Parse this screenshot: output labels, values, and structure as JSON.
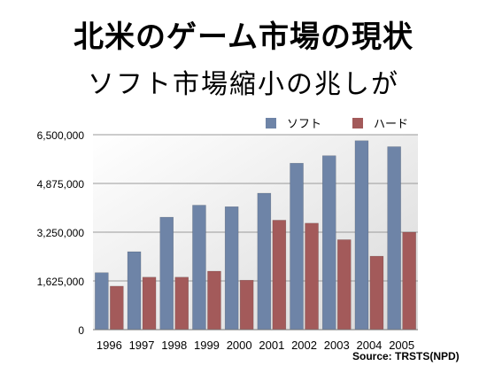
{
  "page": {
    "title": "北米のゲーム市場の現状",
    "subtitle": "ソフト市場縮小の兆しが",
    "source": "Source: TRSTS(NPD)"
  },
  "chart_data": {
    "type": "bar",
    "categories": [
      "1996",
      "1997",
      "1998",
      "1999",
      "2000",
      "2001",
      "2002",
      "2003",
      "2004",
      "2005"
    ],
    "series": [
      {
        "name": "ソフト",
        "color": "#6e84a7",
        "values": [
          1900000,
          2600000,
          3750000,
          4150000,
          4100000,
          4550000,
          5550000,
          5800000,
          6300000,
          6100000
        ]
      },
      {
        "name": "ハード",
        "color": "#a35a5a",
        "values": [
          1450000,
          1750000,
          1750000,
          1950000,
          1650000,
          3650000,
          3550000,
          3000000,
          2450000,
          3250000
        ]
      }
    ],
    "ylim": [
      0,
      6500000
    ],
    "yticks": [
      0,
      1625000,
      3250000,
      4875000,
      6500000
    ],
    "ytick_labels": [
      "0",
      "1,625,000",
      "3,250,000",
      "4,875,000",
      "6,500,000"
    ],
    "grid": true,
    "legend": "top-right"
  }
}
